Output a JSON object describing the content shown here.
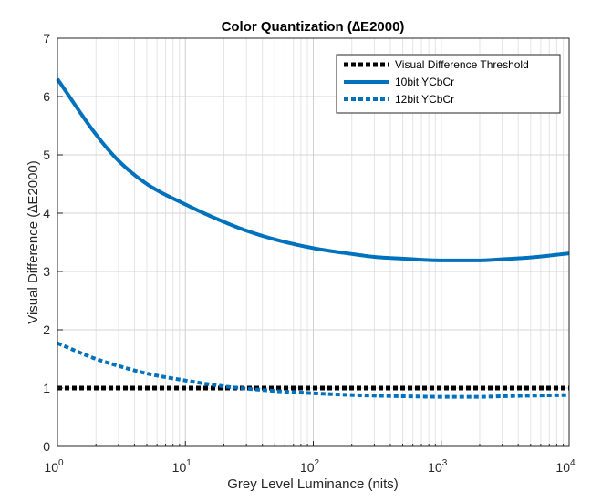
{
  "chart_data": {
    "type": "line",
    "title": "Color Quantization (∆E2000)",
    "xlabel": "Grey Level Luminance (nits)",
    "ylabel": "Visual Difference (∆E2000)",
    "xscale": "log",
    "xlim": [
      1,
      10000
    ],
    "ylim": [
      0,
      7
    ],
    "x_ticks": [
      {
        "base": "10",
        "exp": "0"
      },
      {
        "base": "10",
        "exp": "1"
      },
      {
        "base": "10",
        "exp": "2"
      },
      {
        "base": "10",
        "exp": "3"
      },
      {
        "base": "10",
        "exp": "4"
      }
    ],
    "y_ticks": [
      "0",
      "1",
      "2",
      "3",
      "4",
      "5",
      "6",
      "7"
    ],
    "grid": true,
    "legend_position": "top-right",
    "series": [
      {
        "name": "Visual Difference Threshold",
        "color": "#000000",
        "style": "dotted",
        "x": [
          1,
          10000
        ],
        "y": [
          1.0,
          1.0
        ]
      },
      {
        "name": "10bit YCbCr",
        "color": "#0072BD",
        "style": "solid",
        "x": [
          1,
          2,
          3,
          5,
          10,
          20,
          30,
          50,
          100,
          200,
          300,
          500,
          1000,
          2000,
          3000,
          5000,
          10000
        ],
        "y": [
          6.3,
          5.35,
          4.9,
          4.5,
          4.15,
          3.85,
          3.7,
          3.55,
          3.4,
          3.3,
          3.25,
          3.22,
          3.19,
          3.19,
          3.21,
          3.24,
          3.31
        ]
      },
      {
        "name": "12bit YCbCr",
        "color": "#0072BD",
        "style": "dotted",
        "x": [
          1,
          2,
          3,
          5,
          10,
          20,
          30,
          50,
          100,
          200,
          300,
          500,
          1000,
          2000,
          3000,
          5000,
          10000
        ],
        "y": [
          1.77,
          1.5,
          1.38,
          1.25,
          1.13,
          1.03,
          0.99,
          0.95,
          0.91,
          0.88,
          0.87,
          0.86,
          0.85,
          0.85,
          0.86,
          0.87,
          0.88
        ]
      }
    ]
  }
}
